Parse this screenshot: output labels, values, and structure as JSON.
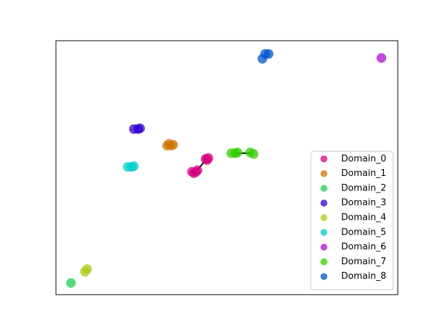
{
  "chart_data": {
    "type": "scatter",
    "xlim": [
      0,
      1
    ],
    "ylim": [
      0,
      1
    ],
    "legend": "lower right",
    "opacity": 0.75,
    "series": [
      {
        "name": "Domain_0",
        "color": "#d6007f",
        "x": [
          0.398,
          0.41,
          0.404,
          0.414,
          0.438,
          0.446,
          0.442
        ],
        "values": [
          0.484,
          0.484,
          0.478,
          0.49,
          0.535,
          0.538,
          0.53
        ]
      },
      {
        "name": "Domain_1",
        "color": "#cc7700",
        "x": [
          0.325,
          0.337,
          0.331,
          0.343
        ],
        "values": [
          0.587,
          0.587,
          0.594,
          0.59
        ]
      },
      {
        "name": "Domain_2",
        "color": "#22cc55",
        "x": [
          0.044
        ],
        "values": [
          0.046
        ]
      },
      {
        "name": "Domain_3",
        "color": "#3300cc",
        "x": [
          0.228,
          0.24,
          0.246
        ],
        "values": [
          0.652,
          0.652,
          0.655
        ]
      },
      {
        "name": "Domain_4",
        "color": "#aacc11",
        "x": [
          0.085,
          0.091
        ],
        "values": [
          0.09,
          0.101
        ]
      },
      {
        "name": "Domain_5",
        "color": "#00cccc",
        "x": [
          0.21,
          0.222,
          0.228
        ],
        "values": [
          0.503,
          0.503,
          0.506
        ]
      },
      {
        "name": "Domain_6",
        "color": "#aa11cc",
        "x": [
          0.952
        ],
        "values": [
          0.932
        ]
      },
      {
        "name": "Domain_7",
        "color": "#33cc00",
        "x": [
          0.513,
          0.525,
          0.531,
          0.568,
          0.578
        ],
        "values": [
          0.557,
          0.557,
          0.56,
          0.56,
          0.554
        ]
      },
      {
        "name": "Domain_8",
        "color": "#0055cc",
        "x": [
          0.604,
          0.612,
          0.622
        ],
        "values": [
          0.929,
          0.948,
          0.948
        ]
      }
    ]
  }
}
